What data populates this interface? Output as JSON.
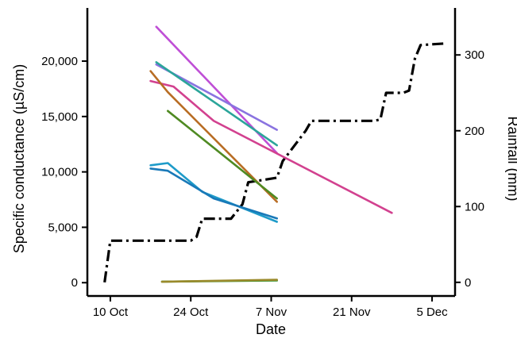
{
  "chart_data": {
    "type": "line",
    "title": "",
    "xlabel": "Date",
    "ylabel_left": "Specific conductance (µS/cm)",
    "ylabel_right": "Rainfall (mm)",
    "x_ticks": [
      {
        "date": "2009-10-10",
        "label": "10 Oct"
      },
      {
        "date": "2009-10-24",
        "label": "24 Oct"
      },
      {
        "date": "2009-11-07",
        "label": "7 Nov"
      },
      {
        "date": "2009-11-21",
        "label": "21 Nov"
      },
      {
        "date": "2009-12-05",
        "label": "5 Dec"
      }
    ],
    "xlim": [
      "2009-10-06",
      "2009-12-09"
    ],
    "ylim_left": [
      -1200,
      24800
    ],
    "y_ticks_left": [
      {
        "value": 0,
        "label": "0"
      },
      {
        "value": 5000,
        "label": "5,000"
      },
      {
        "value": 10000,
        "label": "10,000"
      },
      {
        "value": 15000,
        "label": "15,000"
      },
      {
        "value": 20000,
        "label": "20,000"
      }
    ],
    "ylim_right": [
      -18,
      362
    ],
    "y_ticks_right": [
      {
        "value": 0,
        "label": "0"
      },
      {
        "value": 100,
        "label": "100"
      },
      {
        "value": 200,
        "label": "200"
      },
      {
        "value": 300,
        "label": "300"
      }
    ],
    "series": [
      {
        "axis": "left",
        "color": "#bf4fd6",
        "points": [
          [
            "2009-10-18",
            23100
          ],
          [
            "2009-11-08",
            11700
          ]
        ]
      },
      {
        "axis": "left",
        "color": "#8a73e0",
        "points": [
          [
            "2009-10-18",
            19700
          ],
          [
            "2009-11-08",
            13800
          ]
        ]
      },
      {
        "axis": "left",
        "color": "#2ba59a",
        "points": [
          [
            "2009-10-18",
            19900
          ],
          [
            "2009-11-08",
            12400
          ]
        ]
      },
      {
        "axis": "left",
        "color": "#d2418f",
        "points": [
          [
            "2009-10-17",
            18200
          ],
          [
            "2009-10-21",
            17700
          ],
          [
            "2009-10-28",
            14600
          ],
          [
            "2009-11-28",
            6300
          ]
        ]
      },
      {
        "axis": "left",
        "color": "#b86d24",
        "points": [
          [
            "2009-10-17",
            19100
          ],
          [
            "2009-10-20",
            17200
          ],
          [
            "2009-11-08",
            7300
          ]
        ]
      },
      {
        "axis": "left",
        "color": "#4f8a22",
        "points": [
          [
            "2009-10-20",
            15500
          ],
          [
            "2009-11-08",
            7600
          ]
        ]
      },
      {
        "axis": "left",
        "color": "#1e9bc9",
        "points": [
          [
            "2009-10-17",
            10600
          ],
          [
            "2009-10-20",
            10800
          ],
          [
            "2009-10-26",
            8200
          ],
          [
            "2009-11-08",
            5500
          ]
        ]
      },
      {
        "axis": "left",
        "color": "#1979b8",
        "points": [
          [
            "2009-10-17",
            10300
          ],
          [
            "2009-10-20",
            10100
          ],
          [
            "2009-10-28",
            7600
          ],
          [
            "2009-11-08",
            5800
          ]
        ]
      },
      {
        "axis": "left",
        "color": "#3b9431",
        "points": [
          [
            "2009-10-19",
            100
          ],
          [
            "2009-11-08",
            200
          ]
        ]
      },
      {
        "axis": "left",
        "color": "#9a8a2b",
        "points": [
          [
            "2009-10-19",
            80
          ],
          [
            "2009-11-08",
            260
          ]
        ]
      }
    ],
    "rainfall": {
      "axis": "right",
      "color": "#000000",
      "style": "dash-dot",
      "points": [
        [
          "2009-10-09",
          0
        ],
        [
          "2009-10-10",
          55
        ],
        [
          "2009-10-24",
          55
        ],
        [
          "2009-10-25",
          60
        ],
        [
          "2009-10-26",
          84
        ],
        [
          "2009-10-31",
          84
        ],
        [
          "2009-11-02",
          103
        ],
        [
          "2009-11-03",
          132
        ],
        [
          "2009-11-08",
          138
        ],
        [
          "2009-11-09",
          160
        ],
        [
          "2009-11-13",
          200
        ],
        [
          "2009-11-14",
          213
        ],
        [
          "2009-11-25",
          213
        ],
        [
          "2009-11-26",
          215
        ],
        [
          "2009-11-27",
          250
        ],
        [
          "2009-11-30",
          250
        ],
        [
          "2009-12-01",
          253
        ],
        [
          "2009-12-02",
          295
        ],
        [
          "2009-12-03",
          313
        ],
        [
          "2009-12-07",
          315
        ]
      ]
    }
  }
}
